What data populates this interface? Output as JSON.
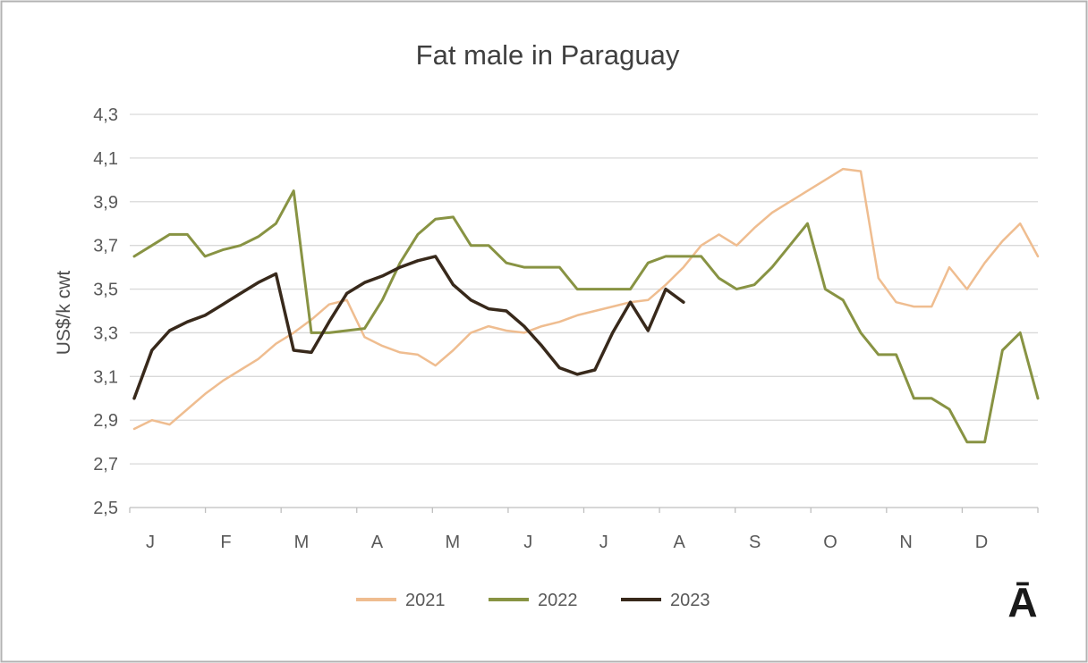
{
  "chart_data": {
    "type": "line",
    "title": "Fat male in Paraguay",
    "ylabel": "US$/k cwt",
    "ylim": [
      2.5,
      4.3
    ],
    "ytick_step": 0.2,
    "yticks": [
      {
        "value": 4.3,
        "label": "4,3"
      },
      {
        "value": 4.1,
        "label": "4,1"
      },
      {
        "value": 3.9,
        "label": "3,9"
      },
      {
        "value": 3.7,
        "label": "3,7"
      },
      {
        "value": 3.5,
        "label": "3,5"
      },
      {
        "value": 3.3,
        "label": "3,3"
      },
      {
        "value": 3.1,
        "label": "3,1"
      },
      {
        "value": 2.9,
        "label": "2,9"
      },
      {
        "value": 2.7,
        "label": "2,7"
      },
      {
        "value": 2.5,
        "label": "2,5"
      }
    ],
    "x_unit": "week",
    "n_points": 52,
    "months": [
      "J",
      "F",
      "M",
      "A",
      "M",
      "J",
      "J",
      "A",
      "S",
      "O",
      "N",
      "D"
    ],
    "grid": "horizontal",
    "legend_position": "bottom",
    "series": [
      {
        "name": "2021",
        "color": "#efbd90",
        "width": 2.5,
        "values": [
          2.86,
          2.9,
          2.88,
          2.95,
          3.02,
          3.08,
          3.13,
          3.18,
          3.25,
          3.3,
          3.36,
          3.43,
          3.45,
          3.28,
          3.24,
          3.21,
          3.2,
          3.15,
          3.22,
          3.3,
          3.33,
          3.31,
          3.3,
          3.33,
          3.35,
          3.38,
          3.4,
          3.42,
          3.44,
          3.45,
          3.52,
          3.6,
          3.7,
          3.75,
          3.7,
          3.78,
          3.85,
          3.9,
          3.95,
          4.0,
          4.05,
          4.04,
          3.55,
          3.44,
          3.42,
          3.42,
          3.6,
          3.5,
          3.62,
          3.72,
          3.8,
          3.65
        ]
      },
      {
        "name": "2022",
        "color": "#889343",
        "width": 3,
        "values": [
          3.65,
          3.7,
          3.75,
          3.75,
          3.65,
          3.68,
          3.7,
          3.74,
          3.8,
          3.95,
          3.3,
          3.3,
          3.31,
          3.32,
          3.45,
          3.62,
          3.75,
          3.82,
          3.83,
          3.7,
          3.7,
          3.62,
          3.6,
          3.6,
          3.6,
          3.5,
          3.5,
          3.5,
          3.5,
          3.62,
          3.65,
          3.65,
          3.65,
          3.55,
          3.5,
          3.52,
          3.6,
          3.7,
          3.8,
          3.5,
          3.45,
          3.3,
          3.2,
          3.2,
          3.0,
          3.0,
          2.95,
          2.8,
          2.8,
          3.22,
          3.3,
          3.0
        ]
      },
      {
        "name": "2023",
        "color": "#38291b",
        "width": 3.5,
        "values": [
          3.0,
          3.22,
          3.31,
          3.35,
          3.38,
          3.43,
          3.48,
          3.53,
          3.57,
          3.22,
          3.21,
          3.35,
          3.48,
          3.53,
          3.56,
          3.6,
          3.63,
          3.65,
          3.52,
          3.45,
          3.41,
          3.4,
          3.33,
          3.24,
          3.14,
          3.11,
          3.13,
          3.3,
          3.44,
          3.31,
          3.5,
          3.44
        ]
      }
    ]
  },
  "corner_mark": "Ā"
}
